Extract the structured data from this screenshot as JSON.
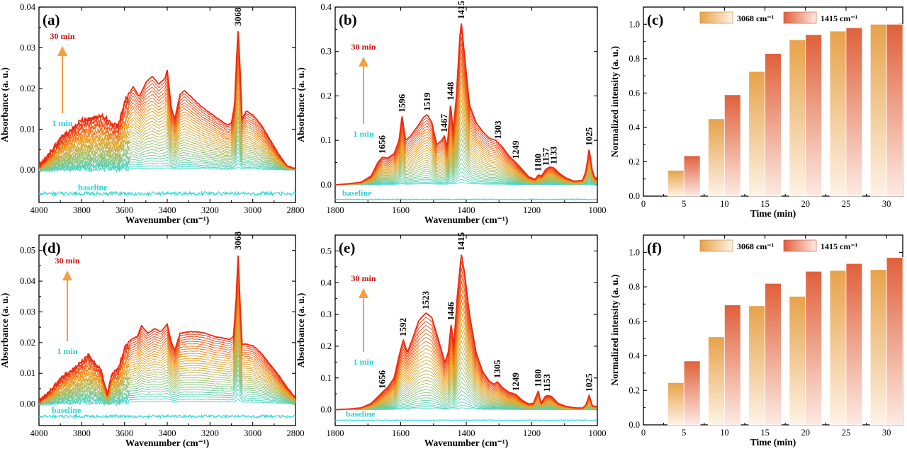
{
  "colors": {
    "series_3068": "#e8a24a",
    "series_1415": "#e0603a",
    "early": "#36d9d9",
    "late": "#ee2a10",
    "arrow": "#f5a040",
    "label_30min": "#d01010",
    "label_1min": "#28d2d2"
  },
  "chart_data": [
    {
      "panel": "(a)",
      "type": "line",
      "title": "",
      "xlabel": "Wavenumber (cm⁻¹)",
      "ylabel": "Absorbance (a. u.)",
      "xlim": [
        4000,
        2800
      ],
      "ylim": [
        -0.008,
        0.04
      ],
      "xticks": [
        4000,
        3800,
        3600,
        3400,
        3200,
        3000,
        2800
      ],
      "yticks": [
        0.0,
        0.01,
        0.02,
        0.03,
        0.04
      ],
      "ytick_labels": [
        "0.00",
        "0.01",
        "0.02",
        "0.03",
        "0.04"
      ],
      "series_count": 30,
      "time_start_label": "1 min",
      "time_end_label": "30 min",
      "baseline_label": "baseline",
      "baseline_y": -0.0058,
      "peaks": [
        {
          "x": 3068,
          "label": "3068",
          "y_final": 0.0345
        }
      ],
      "final_profile": [
        [
          4000,
          0.001
        ],
        [
          3950,
          0.004
        ],
        [
          3900,
          0.0075
        ],
        [
          3850,
          0.01
        ],
        [
          3800,
          0.012
        ],
        [
          3760,
          0.0125
        ],
        [
          3700,
          0.013
        ],
        [
          3660,
          0.0115
        ],
        [
          3630,
          0.0105
        ],
        [
          3600,
          0.0165
        ],
        [
          3560,
          0.0205
        ],
        [
          3530,
          0.018
        ],
        [
          3500,
          0.0215
        ],
        [
          3470,
          0.023
        ],
        [
          3440,
          0.021
        ],
        [
          3410,
          0.0225
        ],
        [
          3400,
          0.0245
        ],
        [
          3380,
          0.015
        ],
        [
          3365,
          0.0125
        ],
        [
          3340,
          0.0185
        ],
        [
          3320,
          0.0195
        ],
        [
          3280,
          0.0175
        ],
        [
          3240,
          0.0155
        ],
        [
          3200,
          0.014
        ],
        [
          3160,
          0.0125
        ],
        [
          3120,
          0.011
        ],
        [
          3100,
          0.0115
        ],
        [
          3085,
          0.016
        ],
        [
          3075,
          0.028
        ],
        [
          3068,
          0.0345
        ],
        [
          3060,
          0.026
        ],
        [
          3050,
          0.0125
        ],
        [
          3030,
          0.0145
        ],
        [
          3000,
          0.0135
        ],
        [
          2960,
          0.011
        ],
        [
          2920,
          0.0075
        ],
        [
          2880,
          0.004
        ],
        [
          2840,
          0.001
        ],
        [
          2800,
          0.0003
        ]
      ]
    },
    {
      "panel": "(b)",
      "type": "line",
      "title": "",
      "xlabel": "Wavenumber (cm⁻¹)",
      "ylabel": "Absorbance (a. u.)",
      "xlim": [
        1800,
        1000
      ],
      "ylim": [
        -0.04,
        0.4
      ],
      "xticks": [
        1800,
        1600,
        1400,
        1200,
        1000
      ],
      "yticks": [
        0.0,
        0.1,
        0.2,
        0.3,
        0.4
      ],
      "ytick_labels": [
        "0.0",
        "0.1",
        "0.2",
        "0.3",
        "0.4"
      ],
      "series_count": 30,
      "time_start_label": "1 min",
      "time_end_label": "30 min",
      "baseline_label": "baseline",
      "baseline_y": -0.033,
      "peaks": [
        {
          "x": 1656,
          "label": "1656",
          "y_final": 0.062
        },
        {
          "x": 1596,
          "label": "1596",
          "y_final": 0.155
        },
        {
          "x": 1519,
          "label": "1519",
          "y_final": 0.158
        },
        {
          "x": 1467,
          "label": "1467",
          "y_final": 0.11
        },
        {
          "x": 1448,
          "label": "1448",
          "y_final": 0.182
        },
        {
          "x": 1415,
          "label": "1415",
          "y_final": 0.365
        },
        {
          "x": 1303,
          "label": "1303",
          "y_final": 0.095
        },
        {
          "x": 1249,
          "label": "1249",
          "y_final": 0.05
        },
        {
          "x": 1180,
          "label": "1180",
          "y_final": 0.022
        },
        {
          "x": 1157,
          "label": "1157",
          "y_final": 0.035
        },
        {
          "x": 1133,
          "label": "1133",
          "y_final": 0.038
        },
        {
          "x": 1025,
          "label": "1025",
          "y_final": 0.08
        }
      ],
      "final_profile": [
        [
          1800,
          0.0
        ],
        [
          1760,
          0.002
        ],
        [
          1720,
          0.006
        ],
        [
          1690,
          0.02
        ],
        [
          1670,
          0.05
        ],
        [
          1656,
          0.062
        ],
        [
          1640,
          0.06
        ],
        [
          1620,
          0.07
        ],
        [
          1605,
          0.1
        ],
        [
          1596,
          0.155
        ],
        [
          1585,
          0.1
        ],
        [
          1570,
          0.11
        ],
        [
          1550,
          0.13
        ],
        [
          1530,
          0.152
        ],
        [
          1519,
          0.158
        ],
        [
          1505,
          0.14
        ],
        [
          1490,
          0.09
        ],
        [
          1475,
          0.1
        ],
        [
          1467,
          0.11
        ],
        [
          1458,
          0.085
        ],
        [
          1448,
          0.182
        ],
        [
          1440,
          0.12
        ],
        [
          1430,
          0.2
        ],
        [
          1420,
          0.33
        ],
        [
          1415,
          0.365
        ],
        [
          1405,
          0.29
        ],
        [
          1390,
          0.18
        ],
        [
          1370,
          0.14
        ],
        [
          1350,
          0.12
        ],
        [
          1330,
          0.105
        ],
        [
          1310,
          0.1
        ],
        [
          1303,
          0.095
        ],
        [
          1290,
          0.085
        ],
        [
          1270,
          0.065
        ],
        [
          1249,
          0.05
        ],
        [
          1230,
          0.035
        ],
        [
          1210,
          0.018
        ],
        [
          1190,
          0.012
        ],
        [
          1180,
          0.022
        ],
        [
          1170,
          0.02
        ],
        [
          1157,
          0.035
        ],
        [
          1145,
          0.04
        ],
        [
          1133,
          0.038
        ],
        [
          1115,
          0.025
        ],
        [
          1095,
          0.015
        ],
        [
          1070,
          0.008
        ],
        [
          1045,
          0.01
        ],
        [
          1035,
          0.03
        ],
        [
          1025,
          0.08
        ],
        [
          1015,
          0.03
        ],
        [
          1005,
          0.012
        ],
        [
          1000,
          0.02
        ]
      ]
    },
    {
      "panel": "(c)",
      "type": "bar",
      "title": "",
      "xlabel": "Time (min)",
      "ylabel": "Normalized intensity (a. u.)",
      "xlim": [
        0,
        32
      ],
      "ylim": [
        0,
        1.1
      ],
      "xticks": [
        0,
        5,
        10,
        15,
        20,
        25,
        30
      ],
      "yticks": [
        0.0,
        0.2,
        0.4,
        0.6,
        0.8,
        1.0
      ],
      "ytick_labels": [
        "0.0",
        "0.2",
        "0.4",
        "0.6",
        "0.8",
        "1.0"
      ],
      "categories": [
        5,
        10,
        15,
        20,
        25,
        30
      ],
      "series": [
        {
          "name": "3068 cm⁻¹",
          "values": [
            0.15,
            0.45,
            0.725,
            0.91,
            0.96,
            1.0
          ]
        },
        {
          "name": "1415 cm⁻¹",
          "values": [
            0.235,
            0.59,
            0.83,
            0.94,
            0.98,
            1.0
          ]
        }
      ],
      "legend": "top-center"
    },
    {
      "panel": "(d)",
      "type": "line",
      "title": "",
      "xlabel": "Wavenumber (cm⁻¹)",
      "ylabel": "Absorbance (a. u.)",
      "xlim": [
        4000,
        2800
      ],
      "ylim": [
        -0.007,
        0.055
      ],
      "xticks": [
        4000,
        3800,
        3600,
        3400,
        3200,
        3000,
        2800
      ],
      "yticks": [
        0.0,
        0.01,
        0.02,
        0.03,
        0.04,
        0.05
      ],
      "ytick_labels": [
        "0.00",
        "0.01",
        "0.02",
        "0.03",
        "0.04",
        "0.05"
      ],
      "series_count": 30,
      "time_start_label": "1 min",
      "time_end_label": "30 min",
      "baseline_label": "baseline",
      "baseline_y": -0.004,
      "peaks": [
        {
          "x": 3068,
          "label": "3068",
          "y_final": 0.049
        }
      ],
      "final_profile": [
        [
          4000,
          0.001
        ],
        [
          3950,
          0.004
        ],
        [
          3900,
          0.008
        ],
        [
          3850,
          0.011
        ],
        [
          3800,
          0.0135
        ],
        [
          3770,
          0.016
        ],
        [
          3740,
          0.013
        ],
        [
          3710,
          0.011
        ],
        [
          3680,
          0.003
        ],
        [
          3660,
          0.01
        ],
        [
          3630,
          0.011
        ],
        [
          3600,
          0.018
        ],
        [
          3570,
          0.021
        ],
        [
          3540,
          0.022
        ],
        [
          3520,
          0.0255
        ],
        [
          3490,
          0.023
        ],
        [
          3460,
          0.0245
        ],
        [
          3430,
          0.0235
        ],
        [
          3400,
          0.026
        ],
        [
          3380,
          0.02
        ],
        [
          3365,
          0.0175
        ],
        [
          3340,
          0.023
        ],
        [
          3300,
          0.0235
        ],
        [
          3260,
          0.0235
        ],
        [
          3220,
          0.023
        ],
        [
          3180,
          0.022
        ],
        [
          3140,
          0.0215
        ],
        [
          3110,
          0.021
        ],
        [
          3090,
          0.022
        ],
        [
          3078,
          0.034
        ],
        [
          3068,
          0.049
        ],
        [
          3060,
          0.034
        ],
        [
          3050,
          0.0195
        ],
        [
          3030,
          0.0195
        ],
        [
          3000,
          0.019
        ],
        [
          2960,
          0.0165
        ],
        [
          2920,
          0.013
        ],
        [
          2880,
          0.0095
        ],
        [
          2840,
          0.0055
        ],
        [
          2800,
          0.002
        ]
      ]
    },
    {
      "panel": "(e)",
      "type": "line",
      "title": "",
      "xlabel": "Wavenumber (cm⁻¹)",
      "ylabel": "Absorbance (a. u.)",
      "xlim": [
        1800,
        1000
      ],
      "ylim": [
        -0.05,
        0.55
      ],
      "xticks": [
        1800,
        1600,
        1400,
        1200,
        1000
      ],
      "yticks": [
        0.0,
        0.1,
        0.2,
        0.3,
        0.4,
        0.5
      ],
      "ytick_labels": [
        "0.0",
        "0.1",
        "0.2",
        "0.3",
        "0.4",
        "0.5"
      ],
      "series_count": 30,
      "time_start_label": "1 min",
      "time_end_label": "30 min",
      "baseline_label": "baseline",
      "baseline_y": -0.033,
      "peaks": [
        {
          "x": 1656,
          "label": "1656",
          "y_final": 0.055
        },
        {
          "x": 1592,
          "label": "1592",
          "y_final": 0.22
        },
        {
          "x": 1523,
          "label": "1523",
          "y_final": 0.305
        },
        {
          "x": 1446,
          "label": "1446",
          "y_final": 0.27
        },
        {
          "x": 1415,
          "label": "1415",
          "y_final": 0.49
        },
        {
          "x": 1305,
          "label": "1305",
          "y_final": 0.088
        },
        {
          "x": 1249,
          "label": "1249",
          "y_final": 0.048
        },
        {
          "x": 1180,
          "label": "1180",
          "y_final": 0.06
        },
        {
          "x": 1153,
          "label": "1153",
          "y_final": 0.045
        },
        {
          "x": 1025,
          "label": "1025",
          "y_final": 0.045
        }
      ],
      "final_profile": [
        [
          1800,
          0.0
        ],
        [
          1760,
          0.002
        ],
        [
          1720,
          0.006
        ],
        [
          1690,
          0.02
        ],
        [
          1670,
          0.04
        ],
        [
          1656,
          0.055
        ],
        [
          1640,
          0.07
        ],
        [
          1620,
          0.1
        ],
        [
          1605,
          0.17
        ],
        [
          1592,
          0.22
        ],
        [
          1580,
          0.18
        ],
        [
          1565,
          0.22
        ],
        [
          1545,
          0.28
        ],
        [
          1523,
          0.305
        ],
        [
          1505,
          0.29
        ],
        [
          1485,
          0.22
        ],
        [
          1465,
          0.15
        ],
        [
          1455,
          0.18
        ],
        [
          1446,
          0.27
        ],
        [
          1438,
          0.2
        ],
        [
          1428,
          0.35
        ],
        [
          1415,
          0.49
        ],
        [
          1405,
          0.43
        ],
        [
          1390,
          0.3
        ],
        [
          1370,
          0.18
        ],
        [
          1350,
          0.12
        ],
        [
          1330,
          0.09
        ],
        [
          1315,
          0.08
        ],
        [
          1305,
          0.088
        ],
        [
          1290,
          0.07
        ],
        [
          1270,
          0.055
        ],
        [
          1249,
          0.048
        ],
        [
          1230,
          0.03
        ],
        [
          1210,
          0.018
        ],
        [
          1195,
          0.02
        ],
        [
          1180,
          0.06
        ],
        [
          1172,
          0.02
        ],
        [
          1160,
          0.04
        ],
        [
          1153,
          0.045
        ],
        [
          1140,
          0.042
        ],
        [
          1120,
          0.02
        ],
        [
          1095,
          0.01
        ],
        [
          1070,
          0.006
        ],
        [
          1045,
          0.005
        ],
        [
          1035,
          0.015
        ],
        [
          1025,
          0.045
        ],
        [
          1015,
          0.012
        ],
        [
          1000,
          0.01
        ]
      ]
    },
    {
      "panel": "(f)",
      "type": "bar",
      "title": "",
      "xlabel": "Time (min)",
      "ylabel": "Normalized intensity (a. u.)",
      "xlim": [
        0,
        32
      ],
      "ylim": [
        0,
        1.1
      ],
      "xticks": [
        0,
        5,
        10,
        15,
        20,
        25,
        30
      ],
      "yticks": [
        0.0,
        0.2,
        0.4,
        0.6,
        0.8,
        1.0
      ],
      "ytick_labels": [
        "0.0",
        "0.2",
        "0.4",
        "0.6",
        "0.8",
        "1.0"
      ],
      "categories": [
        5,
        10,
        15,
        20,
        25,
        30
      ],
      "series": [
        {
          "name": "3068 cm⁻¹",
          "values": [
            0.245,
            0.51,
            0.69,
            0.745,
            0.895,
            0.9
          ]
        },
        {
          "name": "1415 cm⁻¹",
          "values": [
            0.37,
            0.695,
            0.82,
            0.89,
            0.935,
            0.97
          ]
        }
      ],
      "legend": "top-center"
    }
  ]
}
